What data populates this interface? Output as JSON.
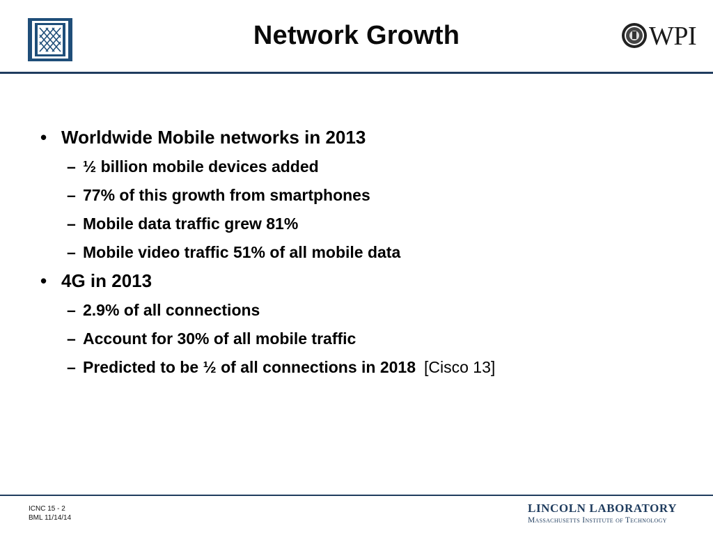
{
  "header": {
    "title": "Network Growth",
    "right_logo_text": "WPI"
  },
  "bullets": [
    {
      "text": "Worldwide Mobile networks in 2013",
      "subitems": [
        "½ billion mobile devices added",
        "77% of this growth from smartphones",
        "Mobile data traffic grew 81%",
        "Mobile video traffic 51% of all mobile data"
      ]
    },
    {
      "text": "4G in 2013",
      "subitems": [
        "2.9% of all connections",
        "Account for 30% of all mobile traffic",
        "Predicted to be ½ of all connections in 2018"
      ],
      "citation": "[Cisco 13]"
    }
  ],
  "markers": {
    "bullet": "•",
    "dash": "–"
  },
  "footer": {
    "slide_id": "ICNC 15 - 2",
    "author_date": "BML  11/14/14",
    "lab_name": "LINCOLN LABORATORY",
    "institution": "Massachusetts Institute of Technology"
  },
  "colors": {
    "rule": "#1f3c5e",
    "logo_blue": "#1f4e79"
  },
  "icons": {
    "left_logo": "lincoln-lab-logo",
    "right_seal": "wpi-seal-icon"
  }
}
